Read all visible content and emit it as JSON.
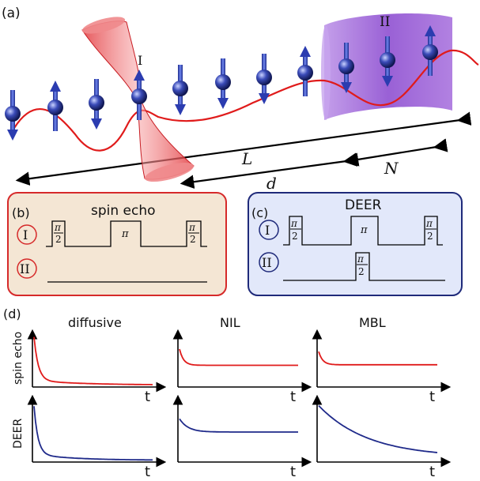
{
  "panels": {
    "a": "(a)",
    "b": "(b)",
    "c": "(c)",
    "d": "(d)"
  },
  "schematic": {
    "region_I": "I",
    "region_II": "II",
    "length_L": "L",
    "length_d": "d",
    "length_N": "N"
  },
  "spin_echo_box": {
    "title": "spin echo",
    "row_I": "I",
    "row_II": "II",
    "pulse_half_num": "π",
    "pulse_half_den": "2",
    "pulse_pi": "π"
  },
  "deer_box": {
    "title": "DEER",
    "row_I": "I",
    "row_II": "II",
    "pulse_half_num": "π",
    "pulse_half_den": "2",
    "pulse_pi": "π"
  },
  "plots": {
    "columns": [
      "diffusive",
      "NIL",
      "MBL"
    ],
    "rows": [
      "spin echo",
      "DEER"
    ],
    "t_label": "t"
  },
  "colors": {
    "laser": "#e8474a",
    "region_II": "#9b59d6",
    "spin": "#2b3a9e",
    "wave": "#e01b1b",
    "spin_echo_bg": "#f4e6d4",
    "spin_echo_border": "#d62a2a",
    "deer_bg": "#e2e8fa",
    "deer_border": "#1f2a7a",
    "echo_curve": "#e01b1b",
    "deer_curve": "#1f2a8a"
  }
}
